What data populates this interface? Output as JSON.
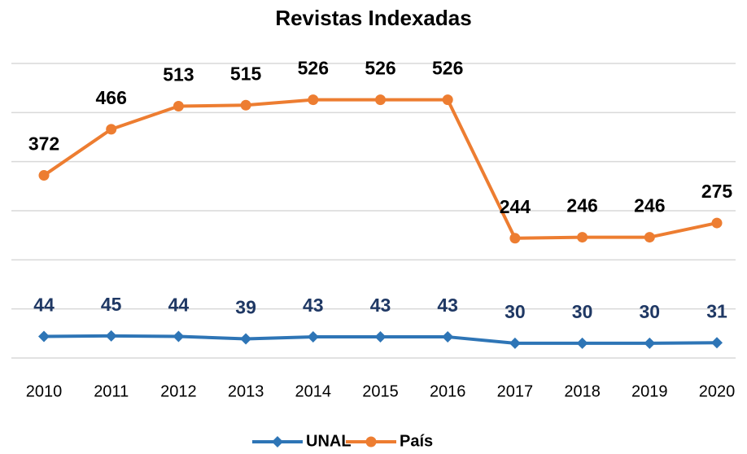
{
  "chart_data": {
    "type": "line",
    "title": "Revistas Indexadas",
    "categories": [
      "2010",
      "2011",
      "2012",
      "2013",
      "2014",
      "2015",
      "2016",
      "2017",
      "2018",
      "2019",
      "2020"
    ],
    "series": [
      {
        "name": "UNAL",
        "color": "#2e75b6",
        "label_color": "#1f3864",
        "marker": "diamond",
        "values": [
          44,
          45,
          44,
          39,
          43,
          43,
          43,
          30,
          30,
          30,
          31
        ]
      },
      {
        "name": "País",
        "color": "#ed7d31",
        "label_color": "#000000",
        "marker": "circle",
        "values": [
          372,
          466,
          513,
          515,
          526,
          526,
          526,
          244,
          246,
          246,
          275
        ]
      }
    ],
    "ylim": [
      0,
      600
    ],
    "yticks": [
      0,
      100,
      200,
      300,
      400,
      500,
      600
    ],
    "grid": true,
    "legend": "bottom"
  }
}
